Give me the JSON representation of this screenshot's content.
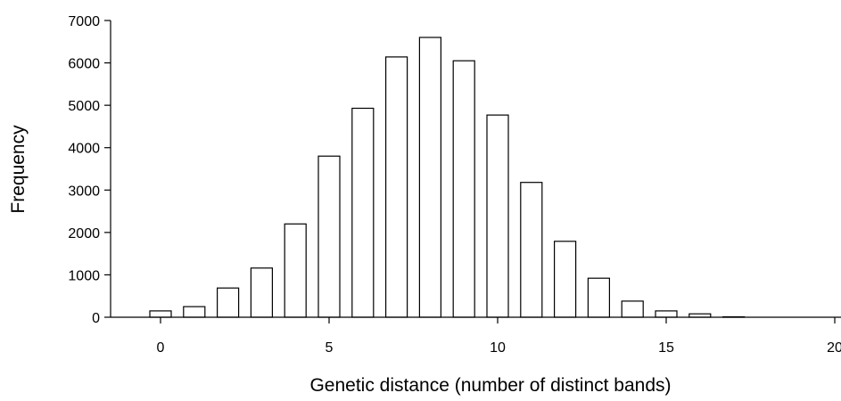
{
  "chart_data": {
    "type": "bar",
    "xlabel": "Genetic distance (number of distinct bands)",
    "ylabel": "Frequency",
    "x": [
      0,
      1,
      2,
      3,
      4,
      5,
      6,
      7,
      8,
      9,
      10,
      11,
      12,
      13,
      14,
      15,
      16,
      17,
      18,
      19,
      20
    ],
    "values": [
      150,
      250,
      690,
      1160,
      2200,
      3800,
      4930,
      6140,
      6600,
      6050,
      4770,
      3180,
      1790,
      920,
      380,
      150,
      80,
      10,
      0,
      0,
      0
    ],
    "xlim": [
      -1.5,
      20
    ],
    "ylim": [
      0,
      7000
    ],
    "xticks": [
      "0",
      "5",
      "10",
      "15",
      "20"
    ],
    "yticks": [
      "0",
      "1000",
      "2000",
      "3000",
      "4000",
      "5000",
      "6000",
      "7000"
    ],
    "grid": false,
    "legend": "none"
  }
}
